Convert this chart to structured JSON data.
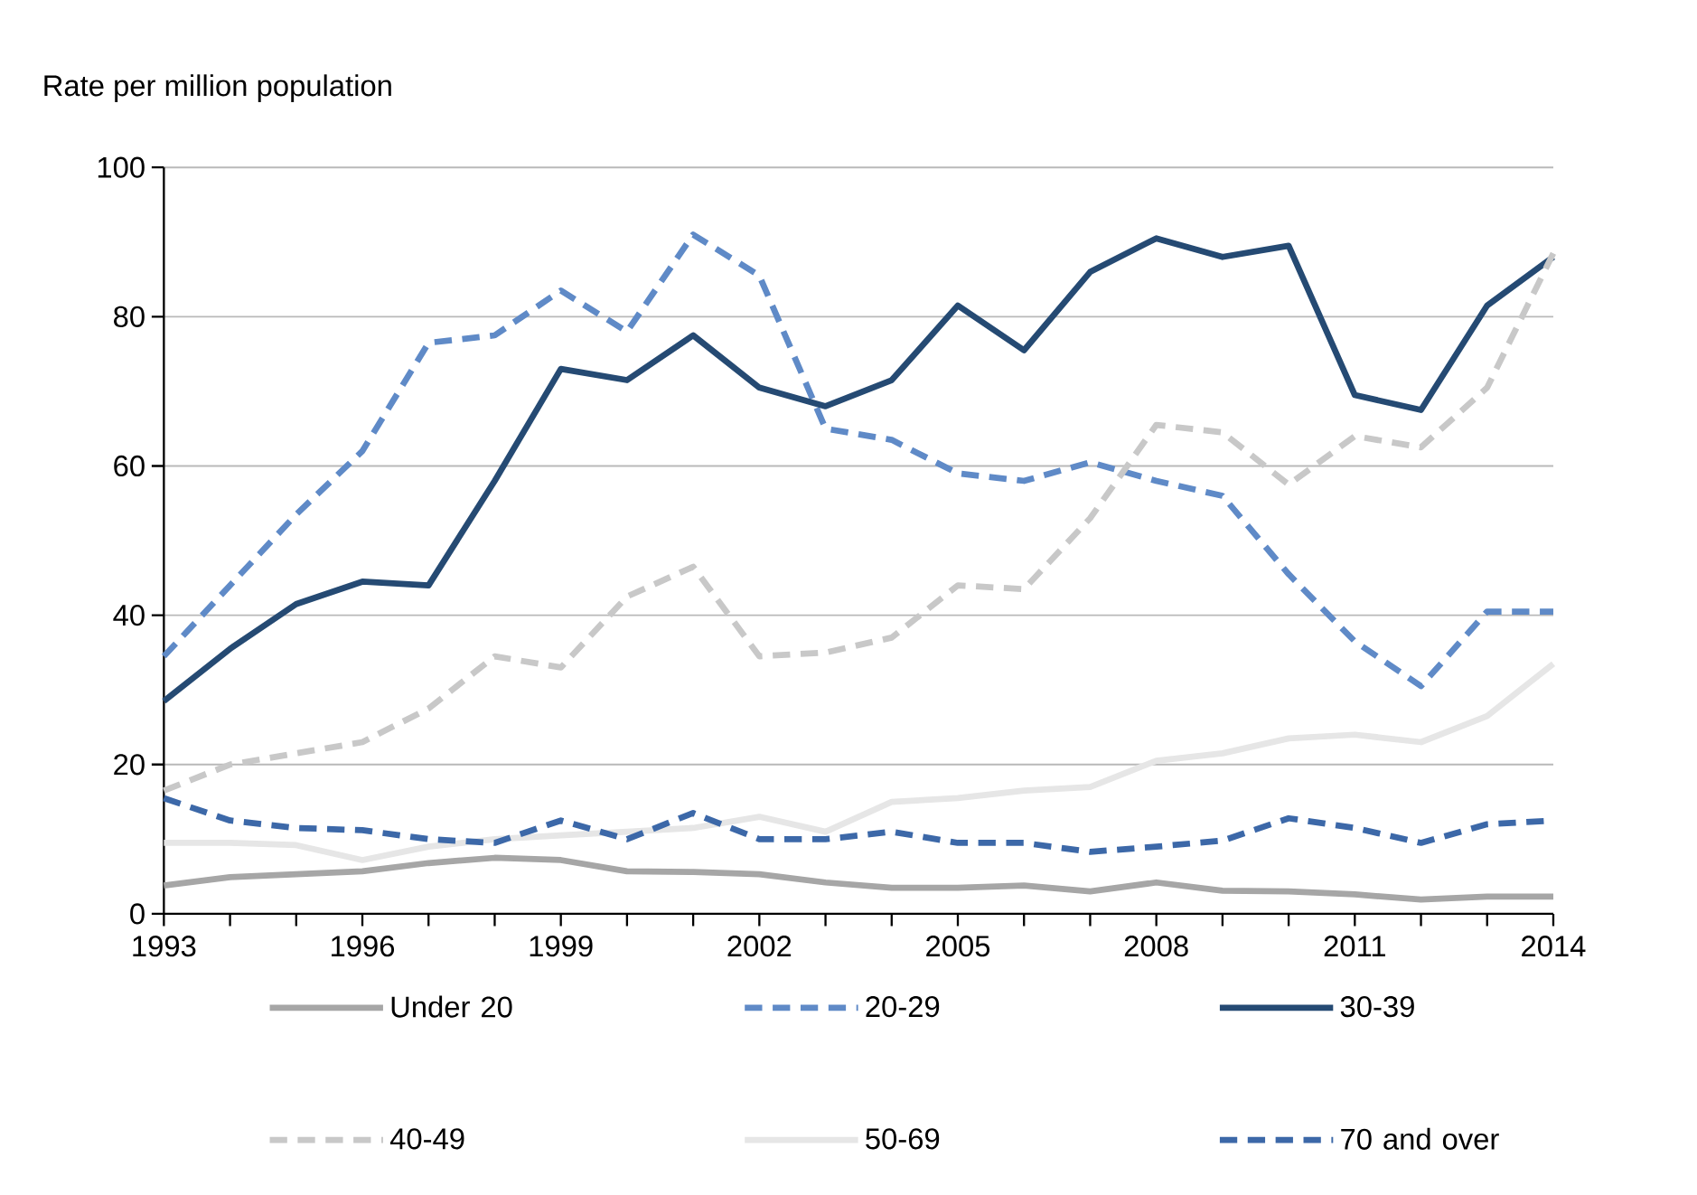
{
  "chart_data": {
    "type": "line",
    "ylabel": "Rate per million population",
    "x": [
      1993,
      1994,
      1995,
      1996,
      1997,
      1998,
      1999,
      2000,
      2001,
      2002,
      2003,
      2004,
      2005,
      2006,
      2007,
      2008,
      2009,
      2010,
      2011,
      2012,
      2013,
      2014
    ],
    "xlim": [
      1993,
      2014
    ],
    "xticks": [
      1993,
      {
        "value": 1994,
        "label": null
      },
      {
        "value": 1995,
        "label": null
      },
      1996,
      {
        "value": 1997,
        "label": null
      },
      {
        "value": 1998,
        "label": null
      },
      1999,
      {
        "value": 2000,
        "label": null
      },
      {
        "value": 2001,
        "label": null
      },
      2002,
      {
        "value": 2003,
        "label": null
      },
      {
        "value": 2004,
        "label": null
      },
      2005,
      {
        "value": 2006,
        "label": null
      },
      {
        "value": 2007,
        "label": null
      },
      2008,
      {
        "value": 2009,
        "label": null
      },
      {
        "value": 2010,
        "label": null
      },
      2011,
      {
        "value": 2012,
        "label": null
      },
      {
        "value": 2013,
        "label": null
      },
      2014
    ],
    "ylim": [
      0,
      100
    ],
    "yticks": [
      0,
      20,
      40,
      60,
      80,
      100
    ],
    "grid": "y",
    "legend": "bottom",
    "series": [
      {
        "name": "Under 20",
        "color": "#a6a6a6",
        "line_style": "solid",
        "values": [
          3.8,
          4.9,
          5.3,
          5.7,
          6.8,
          7.5,
          7.2,
          5.7,
          5.6,
          5.3,
          4.2,
          3.5,
          3.5,
          3.8,
          3.0,
          4.2,
          3.1,
          3.0,
          2.6,
          1.9,
          2.3,
          2.3
        ]
      },
      {
        "name": "20-29",
        "color": "#5f8ac7",
        "line_style": "dashed",
        "values": [
          34.5,
          44,
          53.5,
          62,
          76.5,
          77.5,
          83.5,
          78,
          91,
          85.5,
          65,
          63.5,
          59,
          58,
          60.5,
          58,
          56,
          45.5,
          36.5,
          30.5,
          40.5,
          40.5
        ]
      },
      {
        "name": "30-39",
        "color": "#254a73",
        "line_style": "solid",
        "values": [
          28.5,
          35.5,
          41.5,
          44.5,
          44,
          58,
          73,
          71.5,
          77.5,
          70.5,
          68,
          71.5,
          81.5,
          75.5,
          86,
          90.5,
          88,
          89.5,
          69.5,
          67.5,
          81.5,
          88
        ]
      },
      {
        "name": "40-49",
        "color": "#c8c8c8",
        "line_style": "dashed",
        "values": [
          16.5,
          20,
          21.5,
          23,
          27.5,
          34.5,
          33,
          42.5,
          46.5,
          34.5,
          35,
          37,
          44,
          43.5,
          53,
          65.5,
          64.5,
          57.5,
          64,
          62.5,
          70.5,
          88.5
        ]
      },
      {
        "name": "50-69",
        "color": "#e6e6e6",
        "line_style": "solid",
        "values": [
          9.5,
          9.5,
          9.2,
          7.2,
          9,
          10,
          10.5,
          11,
          11.5,
          13,
          11,
          15,
          15.5,
          16.5,
          17,
          20.5,
          21.5,
          23.5,
          24,
          23,
          26.5,
          33.5
        ]
      },
      {
        "name": "70 and over",
        "color": "#3c68a8",
        "line_style": "dashed",
        "values": [
          15.5,
          12.5,
          11.5,
          11.2,
          10,
          9.5,
          12.5,
          10,
          13.5,
          10,
          10,
          11,
          9.5,
          9.5,
          8.3,
          9,
          9.8,
          12.8,
          11.5,
          9.5,
          12,
          12.5
        ]
      }
    ]
  }
}
